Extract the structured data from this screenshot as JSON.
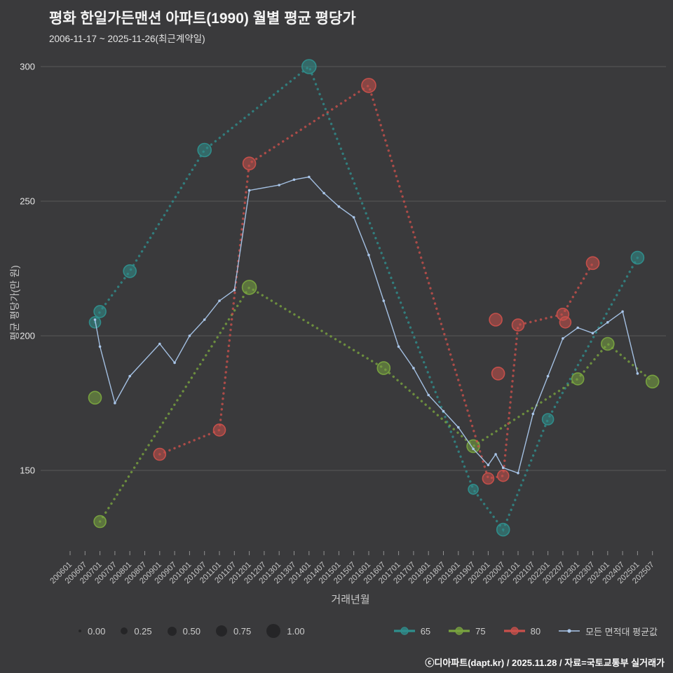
{
  "header": {
    "title": "평화 한일가든맨션 아파트(1990) 월별 평균 평당가",
    "subtitle": "2006-11-17 ~ 2025-11-26(최근계약일)"
  },
  "footer": {
    "credit": "ⓒ디아파트(dapt.kr) / 2025.11.28 / 자료=국토교통부 실거래가"
  },
  "chart_data": {
    "type": "scatter",
    "title": "평화 한일가든맨션 아파트(1990) 월별 평균 평당가",
    "xlabel": "거래년월",
    "ylabel": "평균 평당가(만 원)",
    "ylim": [
      118,
      305
    ],
    "y_ticks": [
      300,
      250,
      200,
      150
    ],
    "grid": "horizontal",
    "x_ticks": [
      "200601",
      "200607",
      "200701",
      "200707",
      "200801",
      "200807",
      "200901",
      "200907",
      "201001",
      "201007",
      "201101",
      "201107",
      "201201",
      "201207",
      "201301",
      "201307",
      "201401",
      "201407",
      "201501",
      "201507",
      "201601",
      "201607",
      "201701",
      "201707",
      "201801",
      "201807",
      "201901",
      "201907",
      "202001",
      "202007",
      "202101",
      "202107",
      "202201",
      "202207",
      "202301",
      "202307",
      "202401",
      "202407",
      "202501",
      "202507"
    ],
    "size_legend": {
      "labels": [
        "0.00",
        "0.25",
        "0.50",
        "0.75",
        "1.00"
      ],
      "radii": [
        2,
        5,
        6.5,
        8,
        10
      ]
    },
    "series": [
      {
        "key": "65",
        "label": "65",
        "color": "#2f8f8d",
        "line": [
          [
            "200611",
            205
          ],
          [
            "200701",
            209
          ],
          [
            "200801",
            224
          ],
          [
            "201007",
            269
          ],
          [
            "201401",
            300
          ],
          [
            "201907",
            143
          ],
          [
            "202007",
            128
          ],
          [
            "202201",
            169
          ],
          [
            "202501",
            229
          ]
        ],
        "points": [
          [
            "200611",
            205,
            8
          ],
          [
            "200701",
            209,
            8.5
          ],
          [
            "200801",
            224,
            9
          ],
          [
            "201007",
            269,
            9.5
          ],
          [
            "201401",
            300,
            10
          ],
          [
            "201907",
            143,
            7
          ],
          [
            "202007",
            128,
            9
          ],
          [
            "202201",
            169,
            8
          ],
          [
            "202501",
            229,
            9
          ]
        ]
      },
      {
        "key": "75",
        "label": "75",
        "color": "#79a43f",
        "line": [
          [
            "200701",
            131
          ],
          [
            "201201",
            218
          ],
          [
            "201607",
            188
          ],
          [
            "201907",
            159
          ],
          [
            "202301",
            184
          ],
          [
            "202401",
            197
          ],
          [
            "202507",
            183
          ]
        ],
        "points": [
          [
            "200611",
            177,
            9
          ],
          [
            "200701",
            131,
            8.5
          ],
          [
            "201201",
            218,
            10
          ],
          [
            "201607",
            188,
            9
          ],
          [
            "201907",
            159,
            9
          ],
          [
            "202301",
            184,
            8.5
          ],
          [
            "202401",
            197,
            9
          ],
          [
            "202507",
            183,
            9
          ]
        ]
      },
      {
        "key": "80",
        "label": "80",
        "color": "#c9504b",
        "line": [
          [
            "200901",
            156
          ],
          [
            "201101",
            165
          ],
          [
            "201201",
            264
          ],
          [
            "201601",
            293
          ],
          [
            "202001",
            147
          ],
          [
            "202007",
            148
          ],
          [
            "202101",
            204
          ],
          [
            "202207",
            208
          ],
          [
            "202307",
            227
          ]
        ],
        "points": [
          [
            "200901",
            156,
            8.5
          ],
          [
            "201101",
            165,
            8.5
          ],
          [
            "201201",
            264,
            9
          ],
          [
            "201601",
            293,
            10
          ],
          [
            "202001",
            147,
            8
          ],
          [
            "202007",
            148,
            8
          ],
          [
            "202004",
            206,
            9
          ],
          [
            "202005",
            186,
            9
          ],
          [
            "202101",
            204,
            8.5
          ],
          [
            "202207",
            208,
            8.5
          ],
          [
            "202208",
            205,
            8
          ],
          [
            "202307",
            227,
            9
          ]
        ]
      },
      {
        "key": "avg",
        "label": "모든 면적대 평균값",
        "color": "#a9c6ea",
        "style": "line",
        "line": [
          [
            "200611",
            206
          ],
          [
            "200701",
            196
          ],
          [
            "200707",
            175
          ],
          [
            "200801",
            185
          ],
          [
            "200901",
            197
          ],
          [
            "200907",
            190
          ],
          [
            "201001",
            200
          ],
          [
            "201007",
            206
          ],
          [
            "201101",
            213
          ],
          [
            "201107",
            217
          ],
          [
            "201201",
            254
          ],
          [
            "201301",
            256
          ],
          [
            "201307",
            258
          ],
          [
            "201401",
            259
          ],
          [
            "201407",
            253
          ],
          [
            "201501",
            248
          ],
          [
            "201507",
            244
          ],
          [
            "201601",
            230
          ],
          [
            "201607",
            213
          ],
          [
            "201701",
            196
          ],
          [
            "201707",
            188
          ],
          [
            "201801",
            178
          ],
          [
            "201807",
            172
          ],
          [
            "201901",
            166
          ],
          [
            "201907",
            158
          ],
          [
            "202001",
            152
          ],
          [
            "202004",
            156
          ],
          [
            "202007",
            151
          ],
          [
            "202101",
            149
          ],
          [
            "202107",
            171
          ],
          [
            "202201",
            185
          ],
          [
            "202207",
            199
          ],
          [
            "202301",
            203
          ],
          [
            "202307",
            201
          ],
          [
            "202401",
            205
          ],
          [
            "202407",
            209
          ],
          [
            "202501",
            186
          ]
        ]
      }
    ]
  }
}
